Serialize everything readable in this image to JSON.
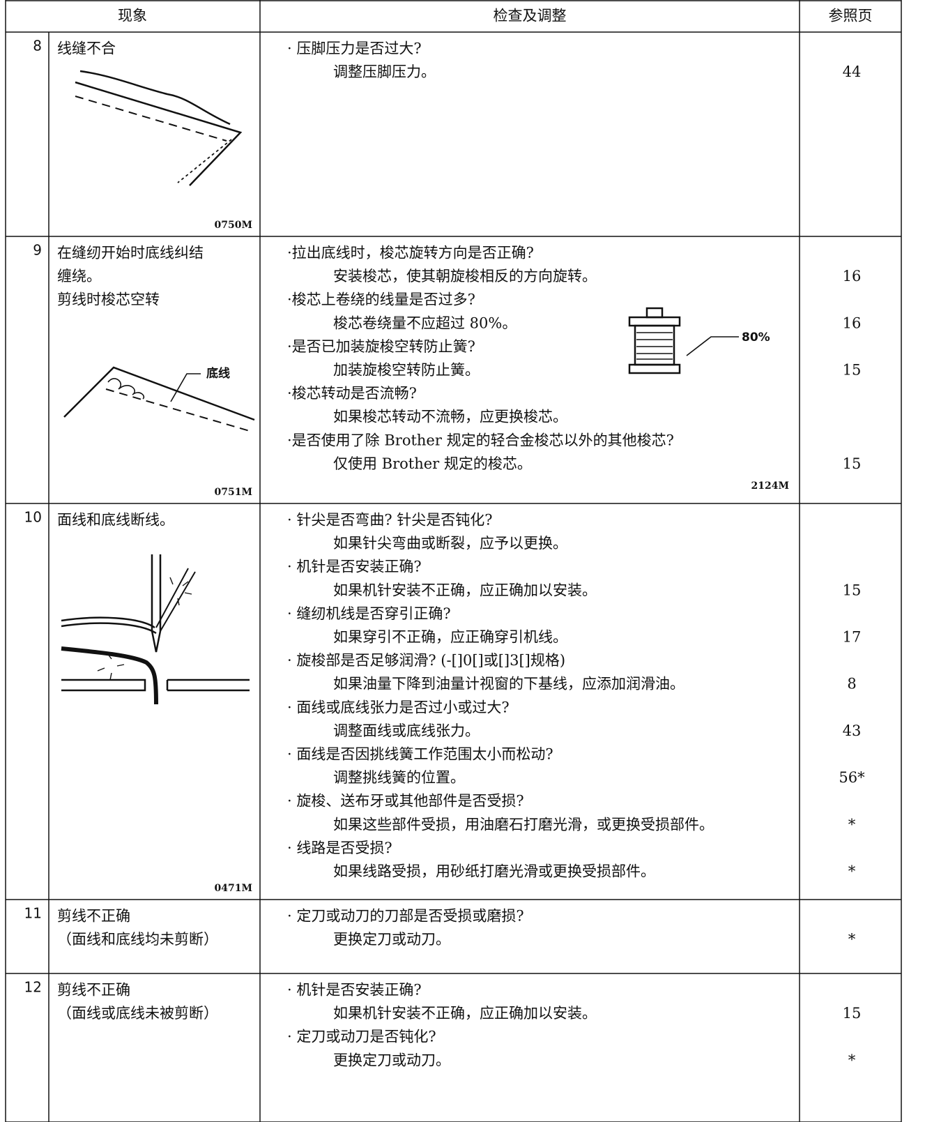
{
  "header": {
    "number": "",
    "symptom": "现象",
    "check": "检查及调整",
    "page": "参照页"
  },
  "rows": [
    {
      "number": "8",
      "symptom": [
        "线缝不合"
      ],
      "figure_code": "0750M",
      "items": [
        {
          "check": "· 压脚压力是否过大?",
          "action": "调整压脚压力。",
          "page": "44"
        }
      ]
    },
    {
      "number": "9",
      "symptom": [
        "在缝纫开始时底线纠结",
        "缠绕。",
        "剪线时梭芯空转"
      ],
      "figure_label": "底线",
      "figure_code": "0751M",
      "check_figure_label": "80%",
      "check_figure_code": "2124M",
      "items": [
        {
          "check": "·拉出底线时，梭芯旋转方向是否正确?",
          "action": "安装梭芯，使其朝旋梭相反的方向旋转。",
          "page": "16"
        },
        {
          "check": "·梭芯上卷绕的线量是否过多?",
          "action": "梭芯卷绕量不应超过 80%。",
          "page": "16"
        },
        {
          "check": "·是否已加装旋梭空转防止簧?",
          "action": "加装旋梭空转防止簧。",
          "page": "15"
        },
        {
          "check": "·梭芯转动是否流畅?",
          "action": "如果梭芯转动不流畅，应更换梭芯。"
        },
        {
          "check": "·是否使用了除 Brother 规定的轻合金梭芯以外的其他梭芯?",
          "action": "仅使用 Brother 规定的梭芯。",
          "page": "15"
        }
      ]
    },
    {
      "number": "10",
      "symptom": [
        "面线和底线断线。"
      ],
      "figure_code": "0471M",
      "items": [
        {
          "check": "· 针尖是否弯曲? 针尖是否钝化?",
          "action": "如果针尖弯曲或断裂，应予以更换。"
        },
        {
          "check": "· 机针是否安装正确?",
          "action": "如果机针安装不正确，应正确加以安装。",
          "page": "15"
        },
        {
          "check": "· 缝纫机线是否穿引正确?",
          "action": "如果穿引不正确，应正确穿引机线。",
          "page": "17"
        },
        {
          "check": "· 旋梭部是否足够润滑? (-[]0[]或[]3[]规格)",
          "action": "如果油量下降到油量计视窗的下基线，应添加润滑油。",
          "page": "8"
        },
        {
          "check": "· 面线或底线张力是否过小或过大?",
          "action": "调整面线或底线张力。",
          "page": "43"
        },
        {
          "check": "· 面线是否因挑线簧工作范围太小而松动?",
          "action": "调整挑线簧的位置。",
          "page": "56*"
        },
        {
          "check": "· 旋梭、送布牙或其他部件是否受损?",
          "action": "如果这些部件受损，用油磨石打磨光滑，或更换受损部件。",
          "page": "*"
        },
        {
          "check": "· 线路是否受损?",
          "action": "如果线路受损，用砂纸打磨光滑或更换受损部件。",
          "page": "*"
        }
      ]
    },
    {
      "number": "11",
      "symptom": [
        "剪线不正确",
        "（面线和底线均未剪断）"
      ],
      "items": [
        {
          "check": "· 定刀或动刀的刀部是否受损或磨损?",
          "action": "更换定刀或动刀。",
          "page": "*"
        }
      ]
    },
    {
      "number": "12",
      "symptom": [
        "剪线不正确",
        "（面线或底线未被剪断）"
      ],
      "items": [
        {
          "check": "· 机针是否安装正确?",
          "action": "如果机针安装不正确，应正确加以安装。",
          "page": "15"
        },
        {
          "check": "· 定刀或动刀是否钝化?",
          "action": "更换定刀或动刀。",
          "page": "*"
        }
      ]
    }
  ]
}
